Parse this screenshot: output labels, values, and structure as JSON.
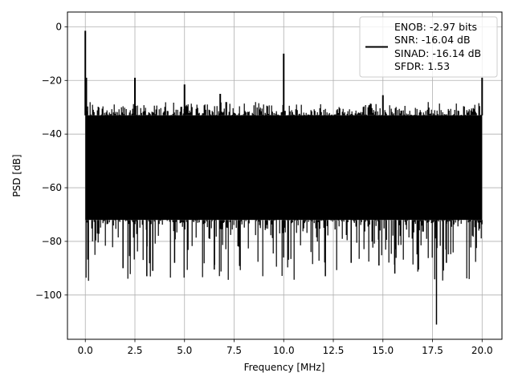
{
  "chart_data": {
    "type": "line",
    "xlabel": "Frequency [MHz]",
    "ylabel": "PSD [dB]",
    "xlim": [
      -0.9,
      21.0
    ],
    "ylim": [
      -116.5,
      5.5
    ],
    "xticks": [
      0.0,
      2.5,
      5.0,
      7.5,
      10.0,
      12.5,
      15.0,
      17.5,
      20.0
    ],
    "xtick_labels": [
      "0.0",
      "2.5",
      "5.0",
      "7.5",
      "10.0",
      "12.5",
      "15.0",
      "17.5",
      "20.0"
    ],
    "yticks": [
      0,
      -20,
      -40,
      -60,
      -80,
      -100
    ],
    "ytick_labels": [
      "0",
      "−20",
      "−40",
      "−60",
      "−80",
      "−100"
    ],
    "grid": true,
    "legend": {
      "placement": "top-right",
      "entries": [
        "ENOB: -2.97 bits",
        "SNR: -16.04 dB",
        "SINAD: -16.14 dB",
        "SFDR: 1.53"
      ]
    },
    "series": [
      {
        "color": "#000000",
        "noise_band": {
          "x_range": [
            0.0,
            20.0
          ],
          "upper_envelope_db": -33,
          "upper_peaks_db": -28,
          "lower_envelope_db": -72,
          "lower_dips_db": -95
        },
        "spikes": [
          {
            "x": 0.0,
            "top": -1.5
          },
          {
            "x": 0.05,
            "top": -19
          },
          {
            "x": 2.5,
            "top": -19
          },
          {
            "x": 5.0,
            "top": -21.5
          },
          {
            "x": 6.8,
            "top": -25
          },
          {
            "x": 10.0,
            "top": -10
          },
          {
            "x": 15.0,
            "top": -25.5
          },
          {
            "x": 20.0,
            "top": -19
          }
        ],
        "dips": [
          {
            "x": 1.9,
            "bottom": -90
          },
          {
            "x": 3.1,
            "bottom": -93
          },
          {
            "x": 3.4,
            "bottom": -91
          },
          {
            "x": 4.5,
            "bottom": -88
          },
          {
            "x": 6.5,
            "bottom": -90.5
          },
          {
            "x": 10.0,
            "bottom": -86
          },
          {
            "x": 12.1,
            "bottom": -93
          },
          {
            "x": 13.4,
            "bottom": -88
          },
          {
            "x": 14.8,
            "bottom": -89
          },
          {
            "x": 15.6,
            "bottom": -92
          },
          {
            "x": 17.7,
            "bottom": -111
          },
          {
            "x": 18.2,
            "bottom": -88
          }
        ]
      }
    ]
  }
}
